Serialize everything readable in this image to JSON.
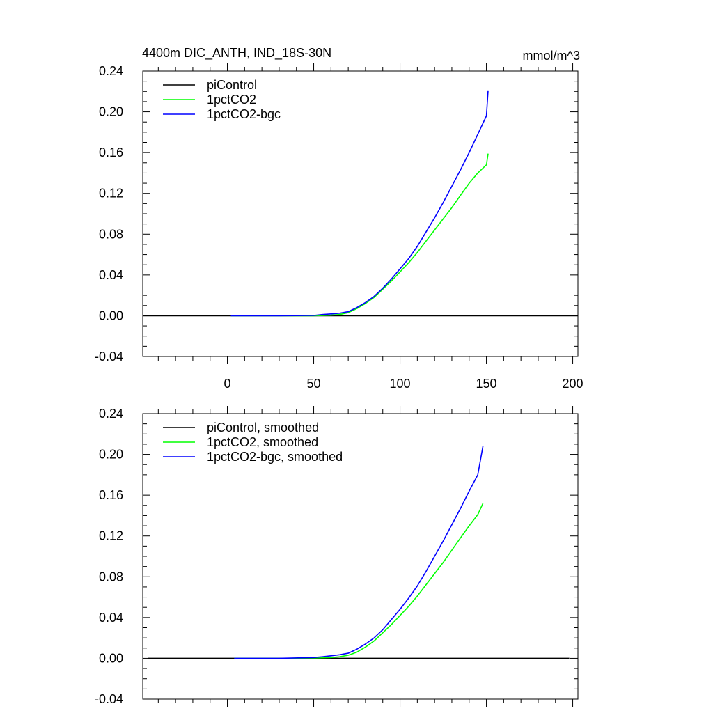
{
  "figure": {
    "title": "4400m DIC_ANTH, IND_18S-30N",
    "units": "mmol/m^3"
  },
  "chart_data": [
    {
      "type": "line",
      "id": "top",
      "title": "4400m DIC_ANTH, IND_18S-30N",
      "units_label": "mmol/m^3",
      "xlabel": "",
      "ylabel": "",
      "xlim": [
        -49,
        203
      ],
      "ylim": [
        -0.04,
        0.24
      ],
      "yticks": [
        -0.04,
        0.0,
        0.04,
        0.08,
        0.12,
        0.16,
        0.2,
        0.24
      ],
      "ytick_labels": [
        "-0.04",
        "0.00",
        "0.04",
        "0.08",
        "0.12",
        "0.16",
        "0.20",
        "0.24"
      ],
      "xticks": [
        0,
        50,
        100,
        150,
        200
      ],
      "xtick_labels": [
        "0",
        "50",
        "100",
        "150",
        "200"
      ],
      "show_xtick_labels": true,
      "legend_position": "top-left",
      "series": [
        {
          "name": "piControl",
          "color": "#000000",
          "points": [
            [
              -49,
              0.0
            ],
            [
              203,
              0.0
            ]
          ]
        },
        {
          "name": "1pctCO2",
          "color": "#00ff00",
          "points": [
            [
              2,
              0.0
            ],
            [
              30,
              0.0
            ],
            [
              50,
              0.0
            ],
            [
              60,
              0.0006
            ],
            [
              65,
              0.0012
            ],
            [
              70,
              0.003
            ],
            [
              75,
              0.007
            ],
            [
              80,
              0.012
            ],
            [
              85,
              0.018
            ],
            [
              90,
              0.026
            ],
            [
              95,
              0.034
            ],
            [
              100,
              0.043
            ],
            [
              105,
              0.052
            ],
            [
              110,
              0.062
            ],
            [
              115,
              0.073
            ],
            [
              120,
              0.084
            ],
            [
              125,
              0.095
            ],
            [
              130,
              0.106
            ],
            [
              135,
              0.118
            ],
            [
              140,
              0.13
            ],
            [
              145,
              0.14
            ],
            [
              150,
              0.148
            ],
            [
              151,
              0.159
            ]
          ]
        },
        {
          "name": "1pctCO2-bgc",
          "color": "#0000ff",
          "points": [
            [
              2,
              0.0
            ],
            [
              30,
              0.0
            ],
            [
              50,
              0.0003
            ],
            [
              55,
              0.0012
            ],
            [
              60,
              0.0018
            ],
            [
              65,
              0.0025
            ],
            [
              70,
              0.004
            ],
            [
              75,
              0.008
            ],
            [
              80,
              0.013
            ],
            [
              85,
              0.019
            ],
            [
              90,
              0.027
            ],
            [
              95,
              0.036
            ],
            [
              100,
              0.046
            ],
            [
              105,
              0.056
            ],
            [
              110,
              0.068
            ],
            [
              115,
              0.082
            ],
            [
              120,
              0.096
            ],
            [
              125,
              0.111
            ],
            [
              130,
              0.127
            ],
            [
              135,
              0.143
            ],
            [
              140,
              0.16
            ],
            [
              145,
              0.178
            ],
            [
              150,
              0.196
            ],
            [
              151,
              0.221
            ]
          ]
        }
      ]
    },
    {
      "type": "line",
      "id": "bottom",
      "title": "",
      "xlabel": "",
      "ylabel": "",
      "xlim": [
        -49,
        203
      ],
      "ylim": [
        -0.04,
        0.24
      ],
      "yticks": [
        -0.04,
        0.0,
        0.04,
        0.08,
        0.12,
        0.16,
        0.2,
        0.24
      ],
      "ytick_labels": [
        "-0.04",
        "0.00",
        "0.04",
        "0.08",
        "0.12",
        "0.16",
        "0.20",
        "0.24"
      ],
      "xticks": [
        0,
        50,
        100,
        150,
        200
      ],
      "xtick_labels": [
        "0",
        "50",
        "100",
        "150",
        "200"
      ],
      "show_xtick_labels": false,
      "legend_position": "top-left",
      "series": [
        {
          "name": "piControl, smoothed",
          "color": "#000000",
          "points": [
            [
              -46,
              0.0
            ],
            [
              198,
              0.0
            ]
          ]
        },
        {
          "name": "1pctCO2, smoothed",
          "color": "#00ff00",
          "points": [
            [
              4,
              0.0
            ],
            [
              30,
              0.0
            ],
            [
              50,
              0.0003
            ],
            [
              60,
              0.0008
            ],
            [
              65,
              0.0015
            ],
            [
              70,
              0.003
            ],
            [
              75,
              0.006
            ],
            [
              80,
              0.011
            ],
            [
              85,
              0.017
            ],
            [
              90,
              0.025
            ],
            [
              95,
              0.033
            ],
            [
              100,
              0.042
            ],
            [
              105,
              0.051
            ],
            [
              110,
              0.061
            ],
            [
              115,
              0.072
            ],
            [
              120,
              0.083
            ],
            [
              125,
              0.094
            ],
            [
              130,
              0.106
            ],
            [
              135,
              0.118
            ],
            [
              140,
              0.13
            ],
            [
              145,
              0.141
            ],
            [
              148,
              0.152
            ]
          ]
        },
        {
          "name": "1pctCO2-bgc, smoothed",
          "color": "#0000ff",
          "points": [
            [
              4,
              0.0
            ],
            [
              30,
              0.0
            ],
            [
              50,
              0.0008
            ],
            [
              55,
              0.0015
            ],
            [
              60,
              0.0025
            ],
            [
              65,
              0.0035
            ],
            [
              70,
              0.005
            ],
            [
              75,
              0.009
            ],
            [
              80,
              0.014
            ],
            [
              85,
              0.02
            ],
            [
              90,
              0.028
            ],
            [
              95,
              0.038
            ],
            [
              100,
              0.048
            ],
            [
              105,
              0.059
            ],
            [
              110,
              0.071
            ],
            [
              115,
              0.085
            ],
            [
              120,
              0.1
            ],
            [
              125,
              0.115
            ],
            [
              130,
              0.131
            ],
            [
              135,
              0.147
            ],
            [
              140,
              0.164
            ],
            [
              145,
              0.18
            ],
            [
              148,
              0.208
            ]
          ]
        }
      ]
    }
  ]
}
